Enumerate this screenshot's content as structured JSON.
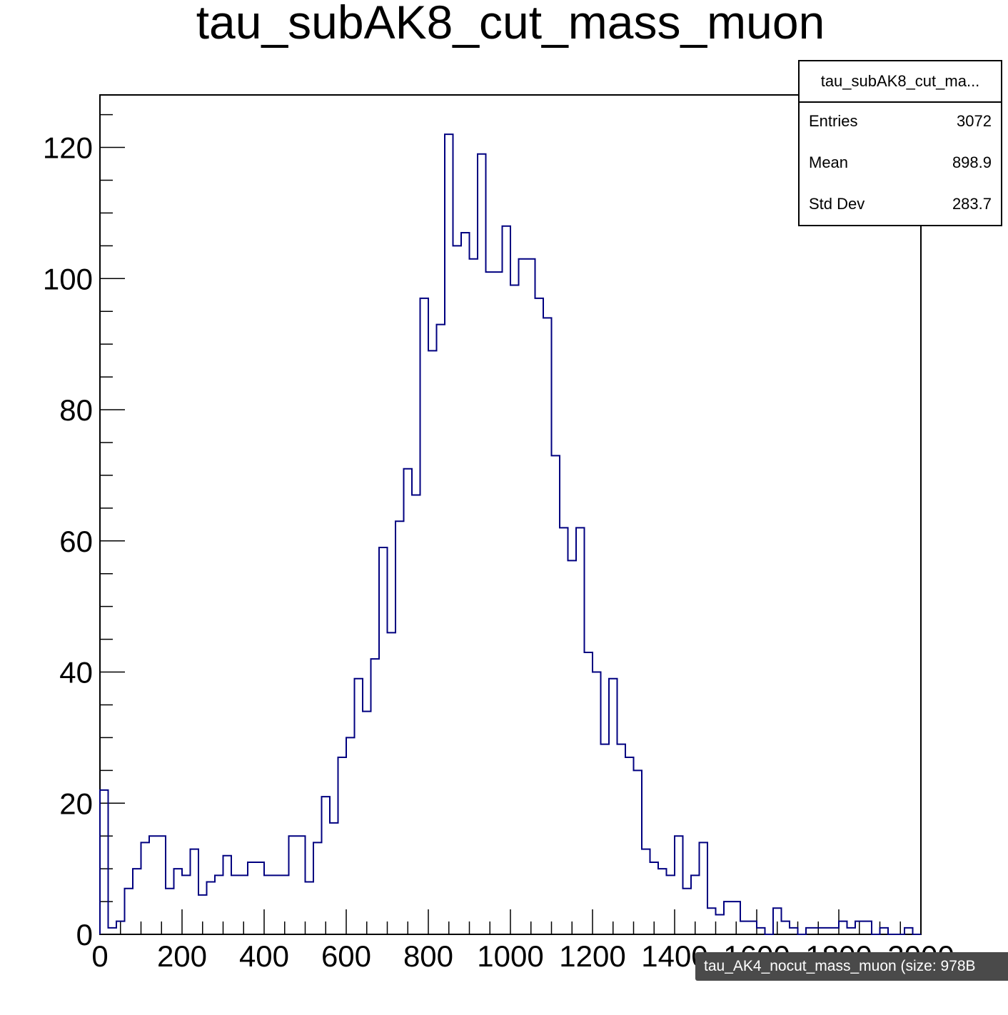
{
  "chart_data": {
    "type": "histogram",
    "title": "tau_subAK8_cut_mass_muon",
    "xlabel": "",
    "ylabel": "",
    "xlim": [
      0,
      2000
    ],
    "ylim": [
      0,
      128
    ],
    "bin_width": 20,
    "line_color": "#000080",
    "x_ticks": [
      0,
      200,
      400,
      600,
      800,
      1000,
      1200,
      1400,
      1600,
      1800,
      2000
    ],
    "x_tick_labels": [
      "0",
      "200",
      "400",
      "600",
      "800",
      "1000",
      "1200",
      "1400",
      "1600",
      "1800",
      "2000"
    ],
    "y_ticks": [
      0,
      20,
      40,
      60,
      80,
      100,
      120
    ],
    "y_tick_labels": [
      "0",
      "20",
      "40",
      "60",
      "80",
      "100",
      "120"
    ],
    "values": [
      22,
      1,
      2,
      7,
      10,
      14,
      15,
      15,
      7,
      10,
      9,
      13,
      6,
      8,
      9,
      12,
      9,
      9,
      11,
      11,
      9,
      9,
      9,
      15,
      15,
      8,
      14,
      21,
      17,
      27,
      30,
      39,
      34,
      42,
      59,
      46,
      63,
      71,
      67,
      97,
      89,
      93,
      122,
      105,
      107,
      103,
      119,
      101,
      101,
      108,
      99,
      103,
      103,
      97,
      94,
      73,
      62,
      57,
      62,
      43,
      40,
      29,
      39,
      29,
      27,
      25,
      13,
      11,
      10,
      9,
      15,
      7,
      9,
      14,
      4,
      3,
      5,
      5,
      2,
      2,
      1,
      0,
      4,
      2,
      1,
      0,
      1,
      1,
      1,
      1,
      2,
      1,
      2,
      2,
      0,
      1,
      0,
      0,
      1,
      0
    ]
  },
  "stats_box": {
    "title": "tau_subAK8_cut_ma...",
    "rows": [
      {
        "label": "Entries",
        "value": "3072"
      },
      {
        "label": "Mean",
        "value": "898.9"
      },
      {
        "label": "Std Dev",
        "value": "283.7"
      }
    ]
  },
  "tooltip": "tau_AK4_nocut_mass_muon (size: 978B"
}
